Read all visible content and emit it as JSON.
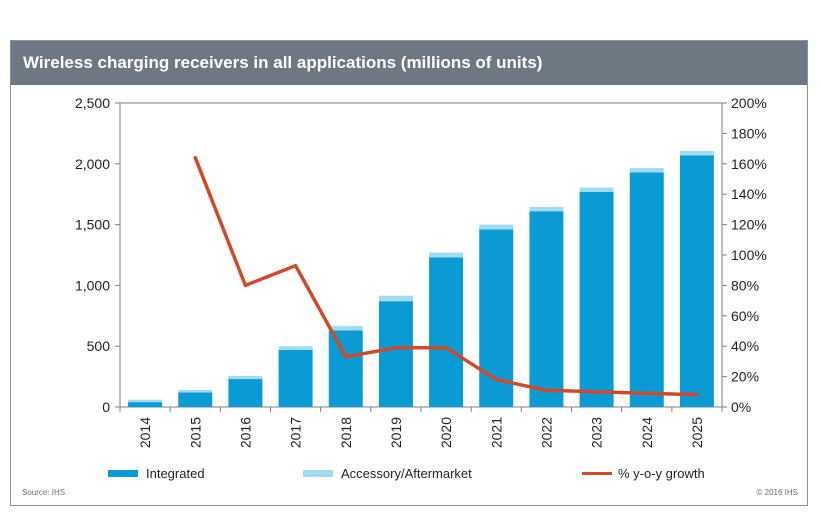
{
  "title": "Wireless charging receivers in all applications (millions of units)",
  "source": "Source: IHS",
  "copyright": "© 2016 IHS",
  "colors": {
    "integrated": "#0a9bd4",
    "accessory": "#a2dbef",
    "growth": "#cf4a2a",
    "title_bg": "#6d7883"
  },
  "chart_data": {
    "type": "bar",
    "stacked": true,
    "categories": [
      "2014",
      "2015",
      "2016",
      "2017",
      "2018",
      "2019",
      "2020",
      "2021",
      "2022",
      "2023",
      "2024",
      "2025"
    ],
    "series": [
      {
        "name": "Integrated",
        "type": "bar",
        "axis": "left",
        "values": [
          40,
          120,
          230,
          470,
          630,
          870,
          1230,
          1460,
          1610,
          1770,
          1930,
          2070
        ]
      },
      {
        "name": "Accessory/Aftermarket",
        "type": "bar",
        "axis": "left",
        "values": [
          20,
          20,
          25,
          30,
          35,
          45,
          40,
          40,
          35,
          35,
          35,
          35
        ]
      },
      {
        "name": "% y-o-y growth",
        "type": "line",
        "axis": "right",
        "values": [
          null,
          164,
          80,
          93,
          33,
          39,
          39,
          18,
          11,
          10,
          9,
          8
        ]
      }
    ],
    "y_left": {
      "min": 0,
      "max": 2500,
      "ticks": [
        "0",
        "500",
        "1,000",
        "1,500",
        "2,000",
        "2,500"
      ]
    },
    "y_right": {
      "min": 0,
      "max": 200,
      "ticks": [
        "0%",
        "20%",
        "40%",
        "60%",
        "80%",
        "100%",
        "120%",
        "140%",
        "160%",
        "180%",
        "200%"
      ]
    },
    "grid": false,
    "legend_position": "bottom"
  }
}
